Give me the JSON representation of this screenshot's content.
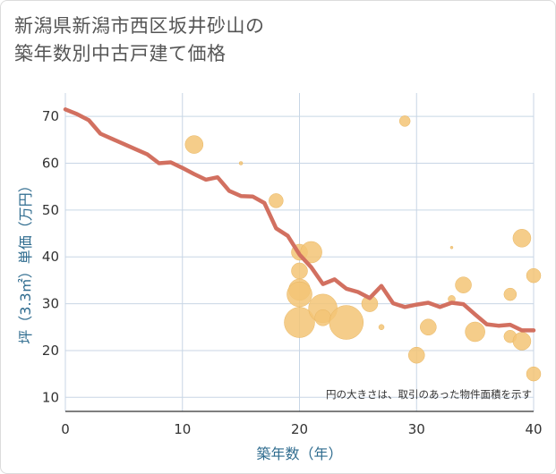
{
  "page": {
    "title_line1": "新潟県新潟市西区坂井砂山の",
    "title_line2": "築年数別中古戸建て価格"
  },
  "colors": {
    "bubble": "#f3c476",
    "bubble_stroke": "#e8b560",
    "line": "#d27060",
    "grid": "#c8d6e5",
    "axis": "#333333",
    "axis_title": "#2f6c8f"
  },
  "chart_data": {
    "type": "scatter",
    "title": "新潟県新潟市西区坂井砂山の築年数別中古戸建て価格",
    "xlabel": "築年数（年）",
    "ylabel": "坪（3.3㎡）単価（万円）",
    "xlim": [
      0,
      40
    ],
    "ylim": [
      7,
      75
    ],
    "xticks": [
      0,
      10,
      20,
      30,
      40
    ],
    "yticks": [
      10,
      20,
      30,
      40,
      50,
      60,
      70
    ],
    "grid": true,
    "note": "円の大きさは、取引のあった物件面積を示す",
    "bubbles": [
      {
        "x": 11,
        "y": 64,
        "size": 10
      },
      {
        "x": 15,
        "y": 60,
        "size": 2
      },
      {
        "x": 18,
        "y": 52,
        "size": 8
      },
      {
        "x": 20,
        "y": 41,
        "size": 9
      },
      {
        "x": 20,
        "y": 37,
        "size": 9
      },
      {
        "x": 20,
        "y": 33,
        "size": 12
      },
      {
        "x": 20,
        "y": 32,
        "size": 14
      },
      {
        "x": 20,
        "y": 26,
        "size": 17
      },
      {
        "x": 21,
        "y": 41,
        "size": 12
      },
      {
        "x": 22,
        "y": 29,
        "size": 16
      },
      {
        "x": 22,
        "y": 27,
        "size": 9
      },
      {
        "x": 24,
        "y": 26,
        "size": 19
      },
      {
        "x": 26,
        "y": 30,
        "size": 9
      },
      {
        "x": 27,
        "y": 25,
        "size": 3
      },
      {
        "x": 29,
        "y": 69,
        "size": 6
      },
      {
        "x": 30,
        "y": 19,
        "size": 9
      },
      {
        "x": 31,
        "y": 25,
        "size": 9
      },
      {
        "x": 33,
        "y": 42,
        "size": 1.5
      },
      {
        "x": 33,
        "y": 31,
        "size": 4
      },
      {
        "x": 34,
        "y": 34,
        "size": 9
      },
      {
        "x": 35,
        "y": 24,
        "size": 11
      },
      {
        "x": 38,
        "y": 32,
        "size": 7
      },
      {
        "x": 38,
        "y": 23,
        "size": 7
      },
      {
        "x": 39,
        "y": 44,
        "size": 10
      },
      {
        "x": 39,
        "y": 22,
        "size": 10
      },
      {
        "x": 40,
        "y": 36,
        "size": 8
      },
      {
        "x": 40,
        "y": 15,
        "size": 8
      }
    ],
    "series": [
      {
        "type": "line",
        "x": [
          0,
          1,
          2,
          3,
          4,
          5,
          6,
          7,
          8,
          9,
          10,
          11,
          12,
          13,
          14,
          15,
          16,
          17,
          18,
          19,
          20,
          21,
          22,
          23,
          24,
          25,
          26,
          27,
          28,
          29,
          30,
          31,
          32,
          33,
          34,
          35,
          36,
          37,
          38,
          39,
          40
        ],
        "y": [
          71.5,
          70.5,
          69.2,
          66.3,
          65.2,
          64.1,
          63.0,
          61.9,
          60.0,
          60.2,
          59.0,
          57.7,
          56.5,
          57.0,
          54.1,
          53.0,
          52.9,
          51.5,
          46.1,
          44.5,
          40.5,
          37.8,
          34.2,
          35.2,
          33.2,
          32.5,
          31.2,
          33.8,
          30.1,
          29.3,
          29.8,
          30.2,
          29.3,
          30.2,
          29.9,
          27.7,
          25.6,
          25.3,
          25.5,
          24.3,
          24.3
        ]
      }
    ]
  }
}
